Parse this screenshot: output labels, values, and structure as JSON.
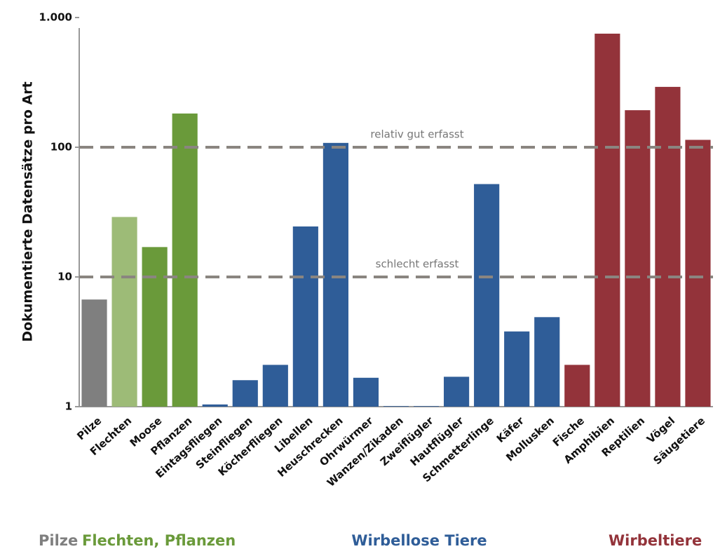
{
  "chart_data": {
    "type": "bar",
    "y_label": "Dokumentierte Datensätze pro Art",
    "log_scale": true,
    "categories": [
      "Pilze",
      "Flechten",
      "Moose",
      "Pflanzen",
      "Eintagsfliegen",
      "Steinfliegen",
      "Köcherfliegen",
      "Libellen",
      "Heuschrecken",
      "Ohrwürmer",
      "Wanzen/Zikaden",
      "Zweiflügler",
      "Hautflügler",
      "Schmetterlinge",
      "Käfer",
      "Mollusken",
      "Fische",
      "Amphibien",
      "Reptilien",
      "Vögel",
      "Säugetiere"
    ],
    "values": [
      6.7,
      29,
      17,
      182,
      1.04,
      1.6,
      2.1,
      24.5,
      108,
      1.67,
      1.01,
      1.01,
      1.7,
      52,
      3.8,
      4.9,
      2.1,
      751,
      193,
      292,
      114
    ],
    "colors": [
      "#7f7f7f",
      "#9dbb77",
      "#6a9a3a",
      "#6a9a3a",
      "#2f5d98",
      "#2f5d98",
      "#2f5d98",
      "#2f5d98",
      "#2f5d98",
      "#2f5d98",
      "#2f5d98",
      "#2f5d98",
      "#2f5d98",
      "#2f5d98",
      "#2f5d98",
      "#2f5d98",
      "#93333a",
      "#93333a",
      "#93333a",
      "#93333a",
      "#93333a"
    ],
    "ylim": [
      1,
      1000
    ],
    "yticks": [
      1,
      10,
      100,
      {
        "value": 1000,
        "label": "1.000"
      }
    ],
    "reference_lines": [
      {
        "value": 100,
        "label": "relativ gut erfasst"
      },
      {
        "value": 10,
        "label": "schlecht erfasst"
      }
    ],
    "groups": [
      {
        "label": "Pilze",
        "color": "#7f7f7f"
      },
      {
        "label": "Flechten, Pflanzen",
        "color": "#6a9a3a"
      },
      {
        "label": "Wirbellose Tiere",
        "color": "#2f5d98"
      },
      {
        "label": "Wirbeltiere",
        "color": "#93333a"
      }
    ]
  }
}
